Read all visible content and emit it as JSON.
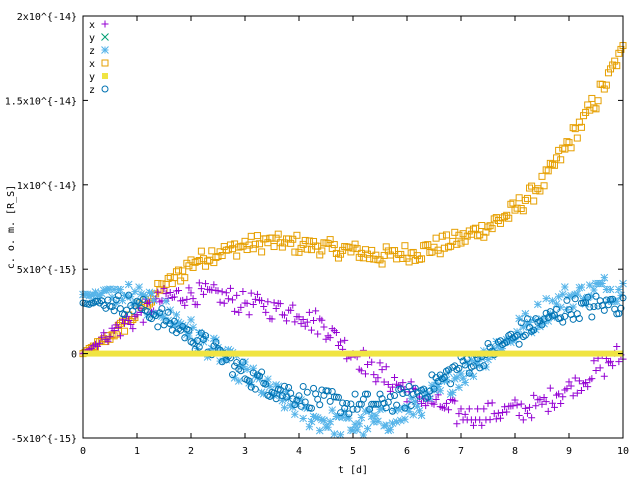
{
  "chart_data": {
    "type": "scatter",
    "xlabel": "t [d]",
    "ylabel": "c. o. m. [R_S]",
    "xlim": [
      0,
      10
    ],
    "ylim": [
      -5e-15,
      2e-14
    ],
    "x_ticks": [
      0,
      1,
      2,
      3,
      4,
      5,
      6,
      7,
      8,
      9,
      10
    ],
    "x_tick_labels": [
      "0",
      "1",
      "2",
      "3",
      "4",
      "5",
      "6",
      "7",
      "8",
      "9",
      "10"
    ],
    "y_ticks": [
      -5e-15,
      0,
      5e-15,
      1e-14,
      1.5e-14,
      2e-14
    ],
    "y_tick_labels": [
      "-5x10^{-15}",
      "0",
      "5x10^{-15}",
      "1x10^{-14}",
      "1.5x10^{-14}",
      "2x10^{-14}"
    ],
    "grid": false,
    "legend_position": "top-left",
    "series": [
      {
        "name": "x",
        "color": "#9400d3",
        "marker": "plus",
        "x": [
          0,
          0.5,
          1,
          1.5,
          2,
          2.5,
          3,
          3.5,
          4,
          4.5,
          5,
          5.5,
          6,
          6.5,
          7,
          7.5,
          8,
          8.5,
          9,
          9.5,
          10
        ],
        "y": [
          0,
          1.2e-15,
          2.3e-15,
          3.2e-15,
          3.6e-15,
          3.4e-15,
          3e-15,
          2.7e-15,
          2.5e-15,
          1.5e-15,
          0,
          -1.2e-15,
          -2.2e-15,
          -3e-15,
          -3.6e-15,
          -3.6e-15,
          -3.4e-15,
          -3e-15,
          -2e-15,
          -1e-15,
          0
        ]
      },
      {
        "name": "y",
        "color": "#009e73",
        "marker": "cross",
        "x": [
          0,
          10
        ],
        "y": [
          0,
          0
        ]
      },
      {
        "name": "z",
        "color": "#56b4e9",
        "marker": "star",
        "x": [
          0,
          0.5,
          1,
          1.5,
          2,
          2.5,
          3,
          3.5,
          4,
          4.5,
          5,
          5.5,
          6,
          6.5,
          7,
          7.5,
          8,
          8.5,
          9,
          9.5,
          10
        ],
        "y": [
          3.5e-15,
          3.6e-15,
          3.3e-15,
          2.5e-15,
          1.3e-15,
          0,
          -1.2e-15,
          -2.4e-15,
          -3.4e-15,
          -4e-15,
          -4.2e-15,
          -4e-15,
          -3.5e-15,
          -2.5e-15,
          -1.2e-15,
          0,
          1.2e-15,
          2.4e-15,
          3.4e-15,
          3.8e-15,
          3.8e-15
        ]
      },
      {
        "name": "x",
        "color": "#e69f00",
        "marker": "box",
        "x": [
          0,
          0.5,
          1,
          1.5,
          2,
          2.5,
          3,
          3.5,
          4,
          4.5,
          5,
          5.5,
          6,
          6.5,
          7,
          7.5,
          8,
          8.5,
          9,
          9.5,
          10
        ],
        "y": [
          0,
          1e-15,
          2.5e-15,
          4e-15,
          5.3e-15,
          6e-15,
          6.4e-15,
          6.6e-15,
          6.5e-15,
          6.3e-15,
          6e-15,
          5.8e-15,
          5.9e-15,
          6.3e-15,
          6.8e-15,
          7.5e-15,
          8.5e-15,
          1e-14,
          1.25e-14,
          1.5e-14,
          1.8e-14
        ]
      },
      {
        "name": "y",
        "color": "#f0e442",
        "marker": "filled-box",
        "x": [
          0,
          10
        ],
        "y": [
          0,
          0
        ]
      },
      {
        "name": "z",
        "color": "#0072b2",
        "marker": "circle",
        "x": [
          0,
          0.5,
          1,
          1.5,
          2,
          2.5,
          3,
          3.5,
          4,
          4.5,
          5,
          5.5,
          6,
          6.5,
          7,
          7.5,
          8,
          8.5,
          9,
          9.5,
          10
        ],
        "y": [
          3e-15,
          3e-15,
          2.8e-15,
          2e-15,
          1e-15,
          0,
          -1.2e-15,
          -2e-15,
          -2.5e-15,
          -2.8e-15,
          -3e-15,
          -3e-15,
          -2.6e-15,
          -1.8e-15,
          -8e-16,
          0,
          1e-15,
          2e-15,
          2.6e-15,
          2.8e-15,
          3e-15
        ]
      }
    ]
  }
}
